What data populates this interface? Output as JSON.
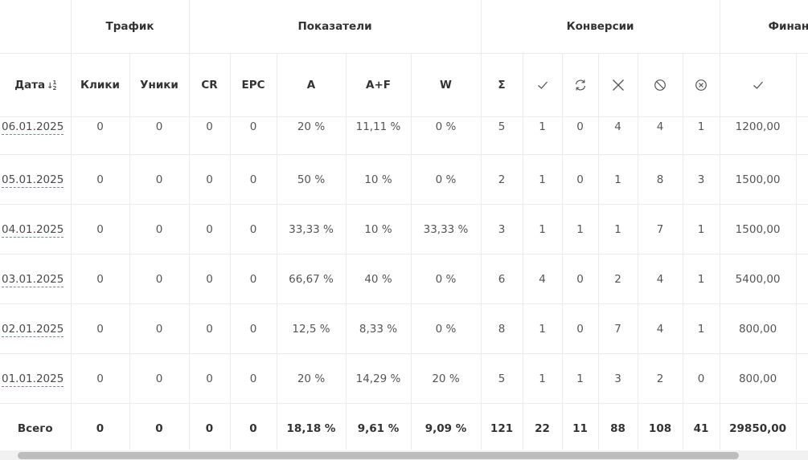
{
  "groups": {
    "traffic": "Трафик",
    "metrics": "Показатели",
    "conversions": "Конверсии",
    "finance": "Финан"
  },
  "columns": {
    "date": "Дата",
    "clicks": "Клики",
    "uniques": "Уники",
    "cr": "CR",
    "epc": "EPC",
    "a": "A",
    "af": "A+F",
    "w": "W",
    "sum": "Σ"
  },
  "icons": {
    "sort": "sort-ascending-icon",
    "approved": "check-icon",
    "processing": "refresh-icon",
    "rejected": "cross-icon",
    "trash": "blocked-icon",
    "cancelled": "circle-x-icon",
    "finance_approved": "check-icon"
  },
  "rows": [
    {
      "date": "06.01.2025",
      "clicks": "0",
      "uniques": "0",
      "cr": "0",
      "epc": "0",
      "a": "20 %",
      "af": "11,11 %",
      "w": "0 %",
      "sum": "5",
      "approved": "1",
      "processing": "0",
      "rejected": "4",
      "trash": "4",
      "cancelled": "1",
      "fin": "1200,00"
    },
    {
      "date": "05.01.2025",
      "clicks": "0",
      "uniques": "0",
      "cr": "0",
      "epc": "0",
      "a": "50 %",
      "af": "10 %",
      "w": "0 %",
      "sum": "2",
      "approved": "1",
      "processing": "0",
      "rejected": "1",
      "trash": "8",
      "cancelled": "3",
      "fin": "1500,00"
    },
    {
      "date": "04.01.2025",
      "clicks": "0",
      "uniques": "0",
      "cr": "0",
      "epc": "0",
      "a": "33,33 %",
      "af": "10 %",
      "w": "33,33 %",
      "sum": "3",
      "approved": "1",
      "processing": "1",
      "rejected": "1",
      "trash": "7",
      "cancelled": "1",
      "fin": "1500,00"
    },
    {
      "date": "03.01.2025",
      "clicks": "0",
      "uniques": "0",
      "cr": "0",
      "epc": "0",
      "a": "66,67 %",
      "af": "40 %",
      "w": "0 %",
      "sum": "6",
      "approved": "4",
      "processing": "0",
      "rejected": "2",
      "trash": "4",
      "cancelled": "1",
      "fin": "5400,00"
    },
    {
      "date": "02.01.2025",
      "clicks": "0",
      "uniques": "0",
      "cr": "0",
      "epc": "0",
      "a": "12,5 %",
      "af": "8,33 %",
      "w": "0 %",
      "sum": "8",
      "approved": "1",
      "processing": "0",
      "rejected": "7",
      "trash": "4",
      "cancelled": "1",
      "fin": "800,00"
    },
    {
      "date": "01.01.2025",
      "clicks": "0",
      "uniques": "0",
      "cr": "0",
      "epc": "0",
      "a": "20 %",
      "af": "14,29 %",
      "w": "20 %",
      "sum": "5",
      "approved": "1",
      "processing": "1",
      "rejected": "3",
      "trash": "2",
      "cancelled": "0",
      "fin": "800,00"
    }
  ],
  "total": {
    "label": "Всего",
    "clicks": "0",
    "uniques": "0",
    "cr": "0",
    "epc": "0",
    "a": "18,18 %",
    "af": "9,61 %",
    "w": "9,09 %",
    "sum": "121",
    "approved": "22",
    "processing": "11",
    "rejected": "88",
    "trash": "108",
    "cancelled": "41",
    "fin": "29850,00"
  }
}
